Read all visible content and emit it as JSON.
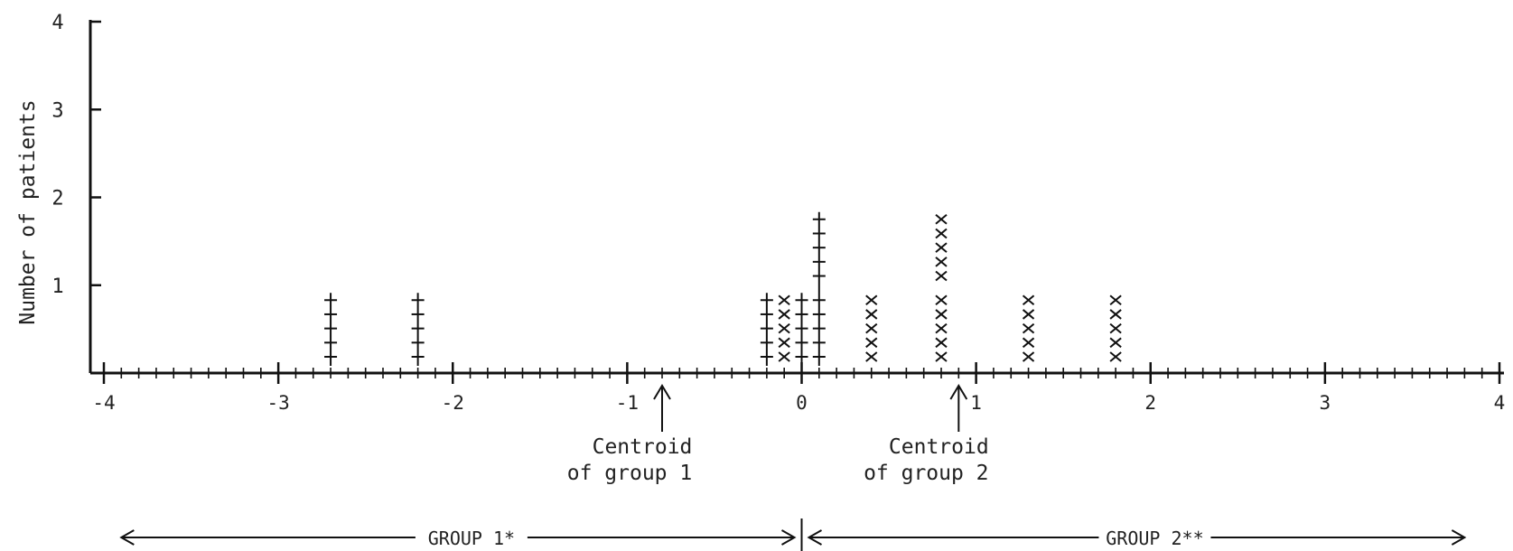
{
  "chart_data": {
    "type": "scatter",
    "ylabel": "Number of patients",
    "xlim": [
      -4,
      4
    ],
    "ylim": [
      0,
      4
    ],
    "x_ticks": [
      "-4",
      "-3",
      "-2",
      "-1",
      "0",
      "1",
      "2",
      "3",
      "4"
    ],
    "y_ticks": [
      "1",
      "2",
      "3",
      "4"
    ],
    "series": [
      {
        "marker": "+",
        "points": [
          {
            "x": -2.7,
            "count": 1
          },
          {
            "x": -2.2,
            "count": 1
          },
          {
            "x": -0.2,
            "count": 1
          },
          {
            "x": 0.0,
            "count": 1
          },
          {
            "x": 0.1,
            "count": 2
          }
        ]
      },
      {
        "marker": "x",
        "points": [
          {
            "x": -0.1,
            "count": 1
          },
          {
            "x": 0.4,
            "count": 1
          },
          {
            "x": 0.8,
            "count": 2
          },
          {
            "x": 1.3,
            "count": 1
          },
          {
            "x": 1.8,
            "count": 1
          }
        ]
      }
    ],
    "annotations": [
      {
        "x": -0.8,
        "line1": "Centroid",
        "line2": "of group 1"
      },
      {
        "x": 0.9,
        "line1": "Centroid",
        "line2": "of group 2"
      }
    ],
    "groups": [
      {
        "label": "GROUP 1*",
        "from": -3.9,
        "to": 0
      },
      {
        "label": "GROUP 2**",
        "from": 0,
        "to": 3.8
      }
    ]
  }
}
